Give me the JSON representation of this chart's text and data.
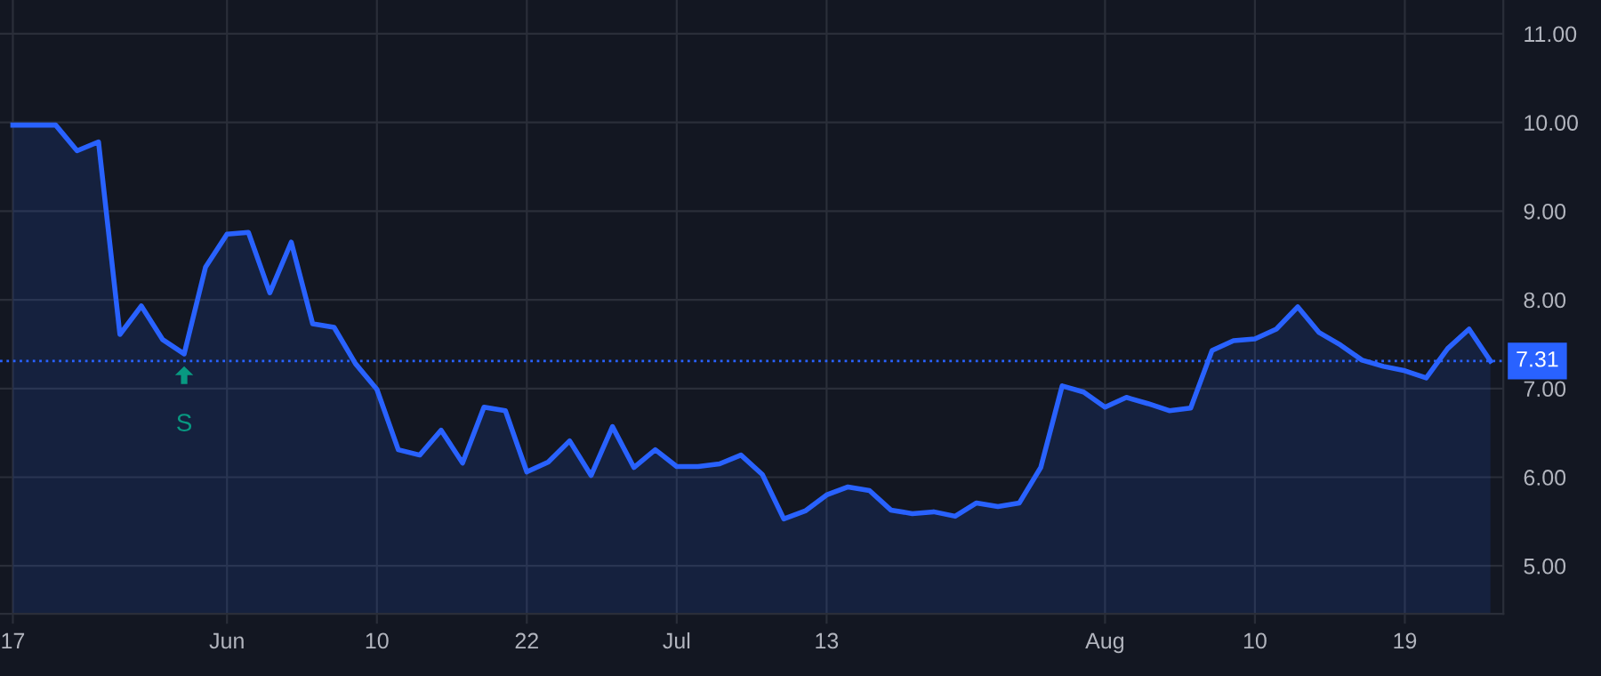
{
  "chart_data": {
    "type": "area",
    "categories": [
      "17",
      null,
      null,
      null,
      null,
      null,
      null,
      null,
      null,
      null,
      "Jun",
      null,
      null,
      null,
      null,
      null,
      null,
      "10",
      null,
      null,
      null,
      null,
      null,
      null,
      "22",
      null,
      null,
      null,
      null,
      null,
      null,
      "Jul",
      null,
      null,
      null,
      null,
      null,
      null,
      "13",
      null,
      null,
      null,
      null,
      null,
      null,
      null,
      null,
      null,
      null,
      null,
      null,
      "Aug",
      null,
      null,
      null,
      null,
      null,
      null,
      "10",
      null,
      null,
      null,
      null,
      null,
      null,
      "19",
      null,
      null,
      null,
      null
    ],
    "series": [
      {
        "color": "#2962ff",
        "values": [
          9.97,
          9.97,
          9.97,
          9.68,
          9.78,
          7.61,
          7.93,
          7.55,
          7.39,
          8.37,
          8.74,
          8.76,
          8.08,
          8.65,
          7.73,
          7.69,
          7.28,
          6.99,
          6.31,
          6.25,
          6.53,
          6.16,
          6.79,
          6.75,
          6.06,
          6.17,
          6.41,
          6.02,
          6.57,
          6.11,
          6.31,
          6.12,
          6.12,
          6.15,
          6.25,
          6.03,
          5.53,
          5.62,
          5.8,
          5.89,
          5.85,
          5.63,
          5.59,
          5.61,
          5.56,
          5.71,
          5.67,
          5.71,
          6.11,
          7.03,
          6.96,
          6.79,
          6.9,
          6.83,
          6.75,
          6.78,
          7.43,
          7.54,
          7.56,
          7.67,
          7.92,
          7.63,
          7.49,
          7.32,
          7.25,
          7.2,
          7.12,
          7.45,
          7.67,
          7.31
        ]
      }
    ],
    "ylim": [
      4.46,
      11.38
    ],
    "yticks": [
      {
        "value": 5,
        "label": "5.00"
      },
      {
        "value": 6,
        "label": "6.00"
      },
      {
        "value": 7,
        "label": "7.00"
      },
      {
        "value": 8,
        "label": "8.00"
      },
      {
        "value": 9,
        "label": "9.00"
      },
      {
        "value": 10,
        "label": "10.00"
      },
      {
        "value": 11,
        "label": "11.00"
      }
    ],
    "ref_lines": [
      {
        "axis": "y",
        "value": 7.31,
        "label": "7.31",
        "color": "#2962ff",
        "line_style": "dotted"
      }
    ],
    "annotations": [
      {
        "text": "S",
        "y": 7.39
      }
    ],
    "grid": true,
    "legend": false,
    "marker": "none",
    "line_style": "solid"
  }
}
